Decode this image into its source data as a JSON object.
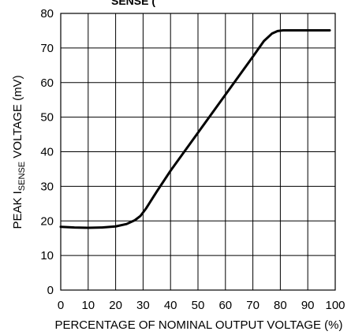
{
  "chart_data": {
    "type": "line",
    "title_fragment": "SENSE (",
    "xlabel": "PERCENTAGE OF NOMINAL OUTPUT VOLTAGE (%)",
    "ylabel": {
      "prefix": "PEAK I",
      "subscript": "SENSE",
      "suffix": " VOLTAGE (mV)"
    },
    "xlim": [
      0,
      100
    ],
    "ylim": [
      0,
      80
    ],
    "xticks": [
      0,
      10,
      20,
      30,
      40,
      50,
      60,
      70,
      80,
      90,
      100
    ],
    "yticks": [
      0,
      10,
      20,
      30,
      40,
      50,
      60,
      70,
      80
    ],
    "grid": true,
    "series": [
      {
        "x": [
          0,
          5,
          10,
          15,
          20,
          24,
          27,
          29,
          31,
          35,
          40,
          45,
          50,
          55,
          60,
          65,
          70,
          74,
          77,
          79,
          81,
          83,
          86,
          90,
          95,
          98
        ],
        "y": [
          18.3,
          18.1,
          18.0,
          18.1,
          18.4,
          19.1,
          20.2,
          21.4,
          23.5,
          28.5,
          34.5,
          40.0,
          45.5,
          51.0,
          56.5,
          62.0,
          67.5,
          72.0,
          74.2,
          74.9,
          75.1,
          75.1,
          75.1,
          75.1,
          75.1,
          75.1
        ]
      }
    ]
  }
}
